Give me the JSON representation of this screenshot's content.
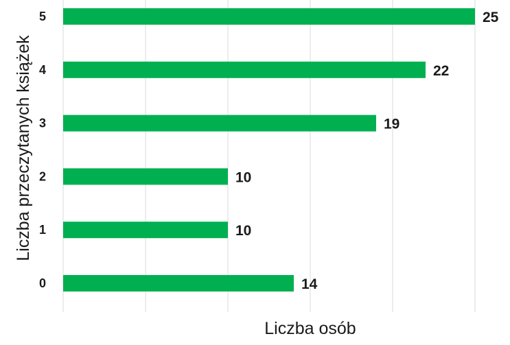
{
  "chart_data": {
    "type": "bar",
    "orientation": "horizontal",
    "categories": [
      "0",
      "1",
      "2",
      "3",
      "4",
      "5"
    ],
    "values": [
      14,
      10,
      10,
      19,
      22,
      25
    ],
    "xlabel": "Liczba osób",
    "ylabel": "Liczba przeczytanych książek",
    "xlim": [
      0,
      25
    ],
    "grid": true,
    "data_labels": true,
    "bar_color": "#00b050"
  }
}
